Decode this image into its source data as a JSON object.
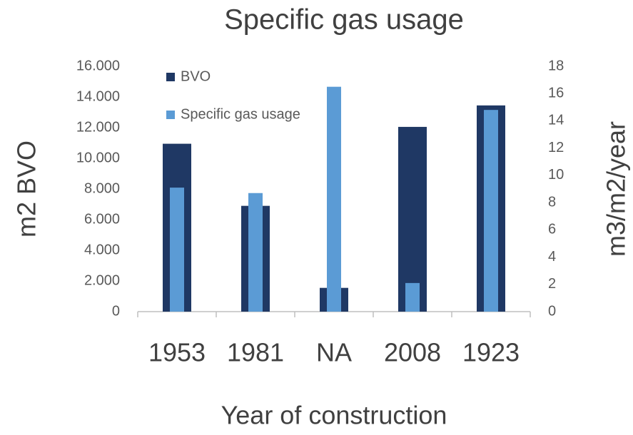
{
  "chart_data": {
    "type": "bar",
    "title": "Specific gas usage",
    "xlabel": "Year of construction",
    "ylabel": "m2 BVO",
    "y2label": "m3/m2/year",
    "categories": [
      "1953",
      "1981",
      "NA",
      "2008",
      "1923"
    ],
    "series": [
      {
        "name": "BVO",
        "color": "#1f3864",
        "values": [
          10950,
          6900,
          1550,
          12050,
          13450
        ]
      },
      {
        "name": "Specific gas usage",
        "color": "#5b9bd5",
        "axis": "y2",
        "values": [
          9.1,
          8.7,
          16.5,
          2.1,
          14.8
        ]
      }
    ],
    "ylim": [
      0,
      16000
    ],
    "yticks": [
      0,
      {
        "value": 2000,
        "label": "2.000"
      },
      {
        "value": 4000,
        "label": "4.000"
      },
      {
        "value": 6000,
        "label": "6.000"
      },
      {
        "value": 8000,
        "label": "8.000"
      },
      {
        "value": 10000,
        "label": "10.000"
      },
      {
        "value": 12000,
        "label": "12.000"
      },
      {
        "value": 14000,
        "label": "14.000"
      },
      {
        "value": 16000,
        "label": "16.000"
      }
    ],
    "y2lim": [
      0,
      18
    ],
    "y2ticks": [
      0,
      2,
      4,
      6,
      8,
      10,
      12,
      14,
      16,
      18
    ],
    "legend": "upper left",
    "grid": false
  }
}
